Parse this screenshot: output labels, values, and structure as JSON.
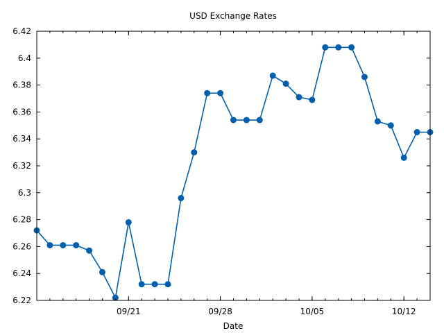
{
  "chart_data": {
    "type": "line",
    "title": "USD Exchange Rates",
    "xlabel": "Date",
    "ylabel": "",
    "x": [
      "2018-09-14",
      "2018-09-15",
      "2018-09-16",
      "2018-09-17",
      "2018-09-18",
      "2018-09-19",
      "2018-09-20",
      "2018-09-21",
      "2018-09-22",
      "2018-09-23",
      "2018-09-24",
      "2018-09-25",
      "2018-09-26",
      "2018-09-27",
      "2018-09-28",
      "2018-09-29",
      "2018-09-30",
      "2018-10-01",
      "2018-10-02",
      "2018-10-03",
      "2018-10-04",
      "2018-10-05",
      "2018-10-06",
      "2018-10-07",
      "2018-10-08",
      "2018-10-09",
      "2018-10-10",
      "2018-10-11",
      "2018-10-12",
      "2018-10-13",
      "2018-10-14"
    ],
    "series": [
      {
        "color": "#005fad",
        "values": [
          6.272,
          6.261,
          6.261,
          6.261,
          6.257,
          6.241,
          6.222,
          6.278,
          6.232,
          6.232,
          6.232,
          6.296,
          6.33,
          6.374,
          6.374,
          6.354,
          6.354,
          6.354,
          6.387,
          6.381,
          6.371,
          6.369,
          6.408,
          6.408,
          6.408,
          6.386,
          6.353,
          6.35,
          6.326,
          6.345,
          6.345
        ]
      }
    ],
    "xticks": [
      {
        "label": "09/21",
        "x": "2018-09-21"
      },
      {
        "label": "09/28",
        "x": "2018-09-28"
      },
      {
        "label": "10/05",
        "x": "2018-10-05"
      },
      {
        "label": "10/12",
        "x": "2018-10-12"
      }
    ],
    "xlim": [
      "2018-09-14",
      "2018-10-14"
    ],
    "yticks": [
      "6.22",
      "6.24",
      "6.26",
      "6.28",
      "6.3",
      "6.32",
      "6.34",
      "6.36",
      "6.38",
      "6.4",
      "6.42"
    ],
    "ylim": [
      6.22,
      6.42
    ],
    "grid": false,
    "legend": "none"
  }
}
